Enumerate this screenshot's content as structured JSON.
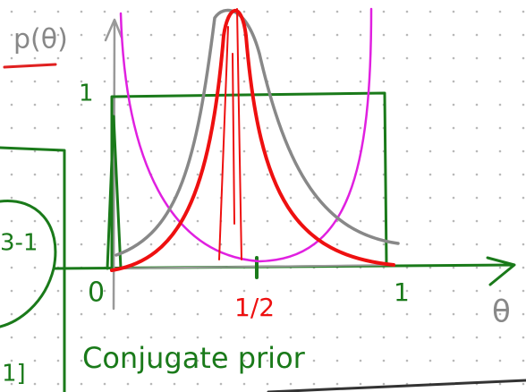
{
  "labels": {
    "y_axis": "p(θ)",
    "y_one": "1",
    "x_zero": "0",
    "x_half": "1/2",
    "x_one": "1",
    "x_axis": "θ",
    "caption": "Conjugate prior",
    "left_fragment_top": "3-1",
    "left_fragment_bottom": "1]"
  }
}
